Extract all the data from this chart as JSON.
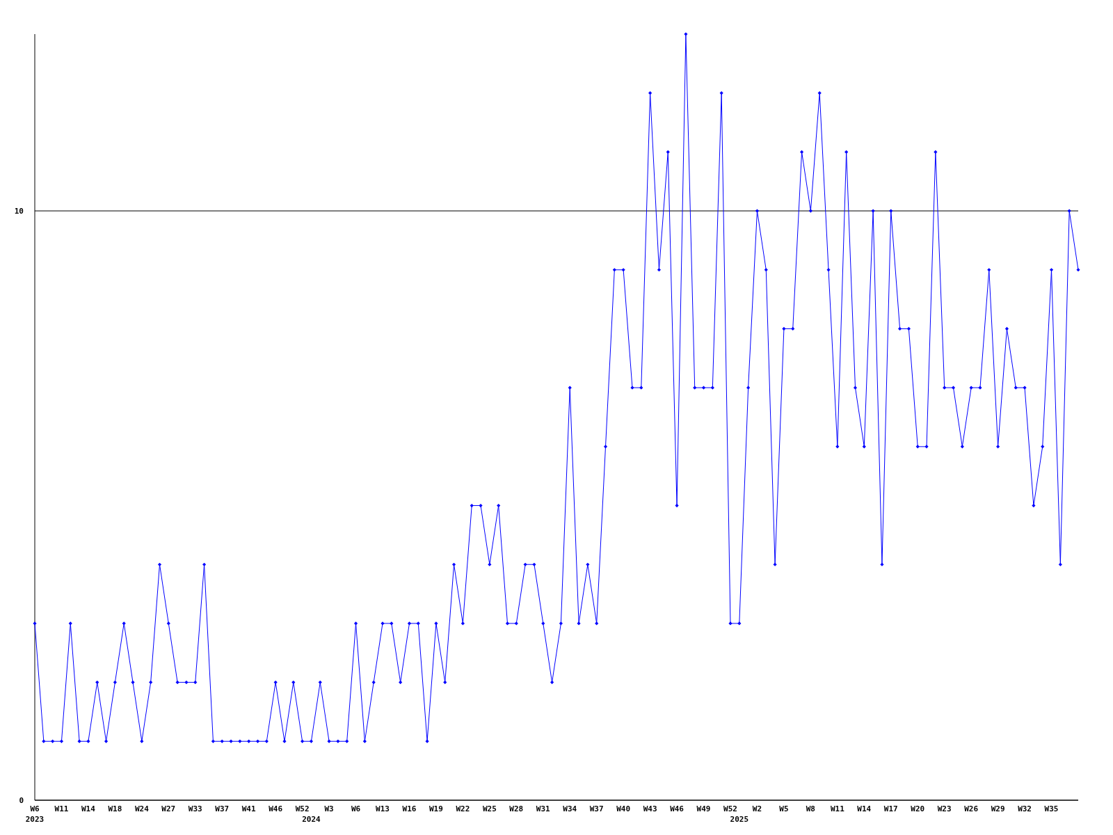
{
  "chart_data": {
    "type": "line",
    "categories": [
      "W6\n2023",
      null,
      null,
      "W11",
      null,
      null,
      "W14",
      null,
      null,
      "W18",
      null,
      null,
      "W24",
      null,
      null,
      "W27",
      null,
      null,
      "W33",
      null,
      null,
      "W37",
      null,
      null,
      "W41",
      null,
      null,
      "W46",
      null,
      null,
      "W52",
      "\n2024",
      null,
      "W3",
      null,
      null,
      "W6",
      null,
      null,
      "W13",
      null,
      null,
      "W16",
      null,
      null,
      "W19",
      null,
      null,
      "W22",
      null,
      null,
      "W25",
      null,
      null,
      "W28",
      null,
      null,
      "W31",
      null,
      null,
      "W34",
      null,
      null,
      "W37",
      null,
      null,
      "W40",
      null,
      null,
      "W43",
      null,
      null,
      "W46",
      null,
      null,
      "W49",
      null,
      null,
      "W52",
      "\n2025",
      null,
      "W2",
      null,
      null,
      "W5",
      null,
      null,
      "W8",
      null,
      null,
      "W11",
      null,
      null,
      "W14",
      null,
      null,
      "W17",
      null,
      null,
      "W20",
      null,
      null,
      "W23",
      null,
      null,
      "W26",
      null,
      null,
      "W29",
      null,
      null,
      "W32",
      null,
      null,
      "W35",
      null,
      null,
      null
    ],
    "series": [
      {
        "color": "#0000ff",
        "values": [
          3,
          1,
          1,
          1,
          3,
          1,
          1,
          2,
          1,
          2,
          3,
          2,
          1,
          2,
          4,
          3,
          2,
          2,
          2,
          4,
          1,
          1,
          1,
          1,
          1,
          1,
          1,
          2,
          1,
          2,
          1,
          1,
          2,
          1,
          1,
          1,
          3,
          1,
          2,
          3,
          3,
          2,
          3,
          3,
          1,
          3,
          2,
          4,
          3,
          5,
          5,
          4,
          5,
          3,
          3,
          4,
          4,
          3,
          2,
          3,
          7,
          3,
          4,
          3,
          6,
          9,
          9,
          7,
          7,
          12,
          9,
          11,
          5,
          13,
          7,
          7,
          7,
          12,
          3,
          3,
          7,
          10,
          9,
          4,
          8,
          8,
          11,
          10,
          12,
          9,
          6,
          11,
          7,
          6,
          10,
          4,
          10,
          8,
          8,
          6,
          6,
          11,
          7,
          7,
          6,
          7,
          7,
          9,
          6,
          8,
          7,
          7,
          5,
          6,
          9,
          4,
          10,
          9
        ]
      }
    ],
    "ylim": [
      0,
      13
    ],
    "yticks": [
      0,
      10
    ],
    "grid": "y",
    "marker": "diamond",
    "line_style": "solid"
  }
}
